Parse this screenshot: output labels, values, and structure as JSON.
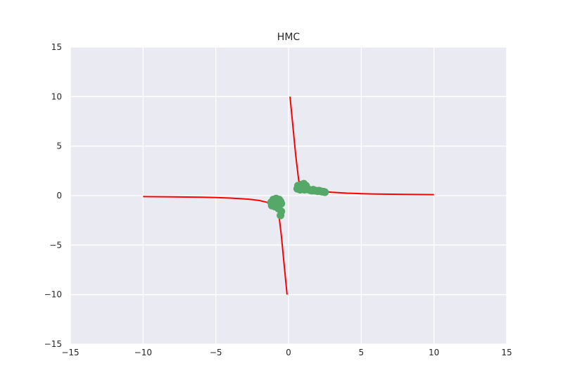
{
  "chart_data": {
    "type": "scatter",
    "title": "HMC",
    "xlabel": "",
    "ylabel": "",
    "xlim": [
      -15,
      15
    ],
    "ylim": [
      -15,
      15
    ],
    "xticks": [
      -15,
      -10,
      -5,
      0,
      5,
      10,
      15
    ],
    "yticks": [
      -15,
      -10,
      -5,
      0,
      5,
      10,
      15
    ],
    "xtick_labels": [
      "−15",
      "−10",
      "−5",
      "0",
      "5",
      "10",
      "15"
    ],
    "ytick_labels": [
      "−15",
      "−10",
      "−5",
      "0",
      "5",
      "10",
      "15"
    ],
    "grid": true,
    "colors": {
      "background": "#eaeaf2",
      "grid": "#ffffff",
      "line": "#ff0000",
      "points": "#55a868"
    },
    "series": [
      {
        "type": "line",
        "x": [
          -10,
          -8,
          -6,
          -5,
          -4,
          -3,
          -2.5,
          -2,
          -1.5,
          -1.2,
          -0.9,
          -0.7,
          -0.5,
          -0.3,
          -0.1
        ],
        "y": [
          -0.1,
          -0.125,
          -0.167,
          -0.2,
          -0.25,
          -0.333,
          -0.4,
          -0.5,
          -0.667,
          -0.833,
          -1.111,
          -1.5,
          -4.0,
          -7.0,
          -10.0
        ]
      },
      {
        "type": "line",
        "x": [
          0.1,
          0.3,
          0.5,
          0.7,
          0.9,
          1.2,
          1.5,
          2,
          2.5,
          3,
          4,
          5,
          6,
          8,
          10
        ],
        "y": [
          10.0,
          7.0,
          4.0,
          1.5,
          1.111,
          0.833,
          0.667,
          0.5,
          0.4,
          0.333,
          0.25,
          0.2,
          0.167,
          0.125,
          0.1
        ]
      },
      {
        "type": "scatter",
        "x": [
          -1.2,
          -1.1,
          -1.0,
          -0.9,
          -0.8,
          -0.7,
          -0.6,
          -0.5,
          -1.15,
          -1.05,
          -0.95,
          -0.85,
          -0.75,
          -0.65,
          -0.55,
          -1.0,
          -0.8,
          -0.6,
          -0.7,
          -0.5,
          -0.55,
          -0.9,
          -1.1,
          0.6,
          0.7,
          0.8,
          0.9,
          1.0,
          1.1,
          1.2,
          1.3,
          1.4,
          1.5,
          1.6,
          1.7,
          1.8,
          1.9,
          2.0,
          2.1,
          2.2,
          2.3,
          2.4,
          2.5,
          0.65,
          0.85,
          1.05,
          1.15,
          0.75,
          0.95
        ],
        "y": [
          -0.7,
          -0.9,
          -0.5,
          -1.0,
          -0.6,
          -0.9,
          -0.5,
          -0.8,
          -1.0,
          -0.4,
          -1.1,
          -0.3,
          -1.0,
          -0.4,
          -0.6,
          -0.8,
          -0.5,
          -0.9,
          -1.3,
          -1.6,
          -2.0,
          -0.6,
          -0.8,
          0.7,
          1.0,
          0.6,
          1.1,
          0.8,
          0.6,
          1.0,
          0.7,
          0.6,
          0.55,
          0.5,
          0.6,
          0.5,
          0.5,
          0.45,
          0.5,
          0.45,
          0.4,
          0.4,
          0.35,
          1.0,
          0.9,
          1.2,
          0.7,
          0.8,
          1.1
        ]
      }
    ]
  }
}
